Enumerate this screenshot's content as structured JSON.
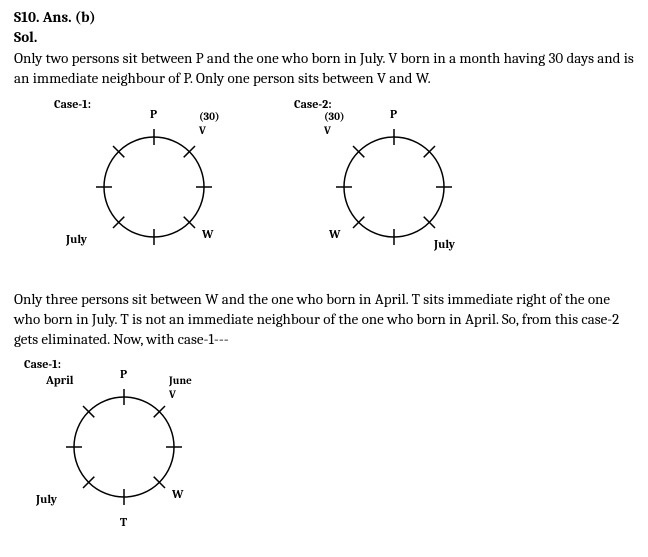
{
  "header": {
    "qid": "S10. Ans. (b)",
    "sol_label": "Sol."
  },
  "para1": "Only two persons sit between P and the one who born in July. V born in a month having 30 days and is an immediate neighbour of P. Only one person sits between V and W.",
  "para2": "Only three persons sit between W and the one who born in April. T sits immediate right of the one who born in July. T is not an immediate neighbour of the one who born in April. So, from this case-2 gets eliminated. Now, with case-1---",
  "diagrams": {
    "case1_top": {
      "title": "Case-1:",
      "seats": {
        "top": "P",
        "tr_line1": "(30)",
        "tr_line2": "V",
        "right": "",
        "br": "W",
        "bottom": "",
        "bl": "July",
        "left": "",
        "tl": ""
      }
    },
    "case2_top": {
      "title": "Case-2:",
      "seats": {
        "top": "P",
        "tl_line1": "(30)",
        "tl_line2": "V",
        "right": "",
        "br": "July",
        "bottom": "",
        "bl": "W",
        "left": "",
        "tr": ""
      }
    },
    "case1_bottom": {
      "title": "Case-1:",
      "seats": {
        "top": "P",
        "tr_line1": "June",
        "tr_line2": "V",
        "right": "",
        "br": "W",
        "bottom": "T",
        "bl": "July",
        "left": "",
        "tl": "April"
      }
    }
  },
  "style": {
    "circle_r": 50,
    "tick_len": 8,
    "stroke": "#000000",
    "stroke_width": 1.5,
    "svg_size": 180
  }
}
